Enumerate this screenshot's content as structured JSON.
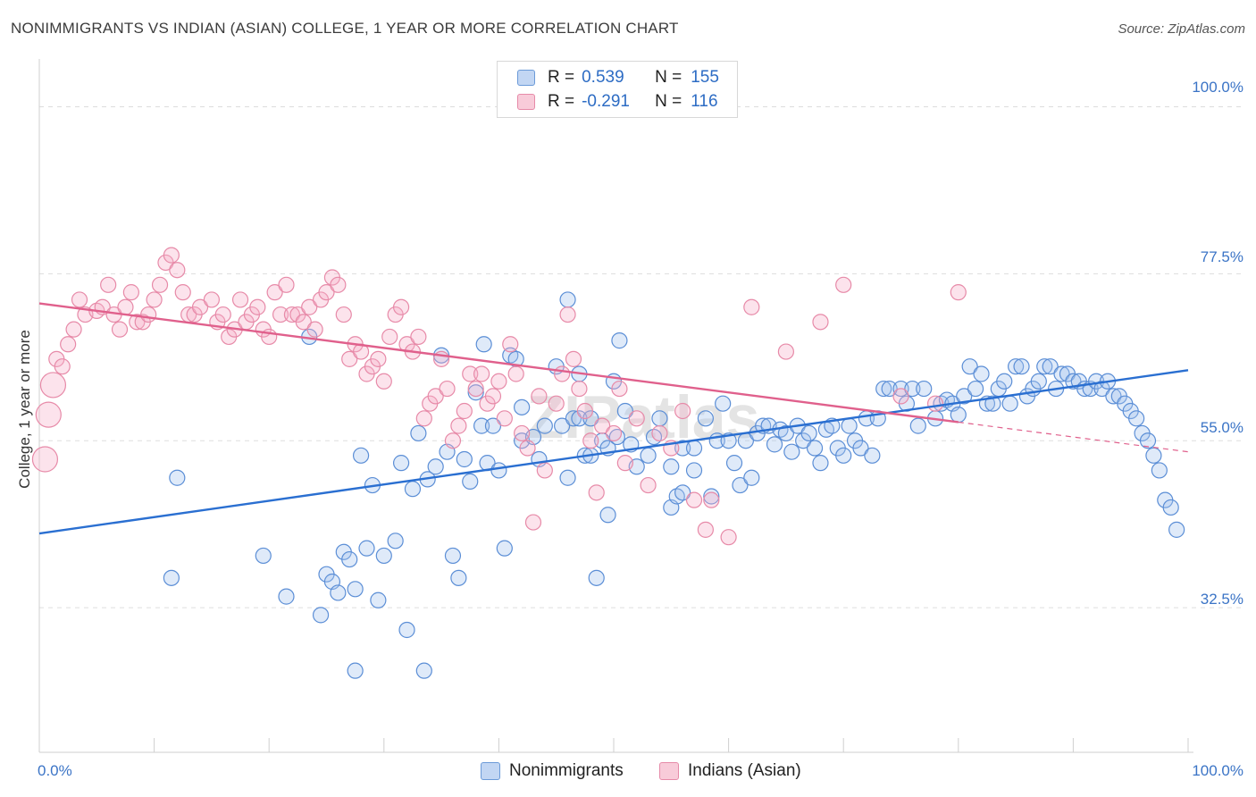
{
  "header": {
    "title": "NONIMMIGRANTS VS INDIAN (ASIAN) COLLEGE, 1 YEAR OR MORE CORRELATION CHART",
    "source": "Source: ZipAtlas.com"
  },
  "watermark": "ZIPatlas",
  "legend": {
    "rows": [
      {
        "r_label": "R =",
        "r_value": "0.539",
        "n_label": "N =",
        "n_value": "155",
        "color": "#a9c8ef"
      },
      {
        "r_label": "R =",
        "r_value": "-0.291",
        "n_label": "N =",
        "n_value": "116",
        "color": "#f5b7cb"
      }
    ]
  },
  "bottom_legend": {
    "items": [
      {
        "label": "Nonimmigrants",
        "color": "#a9c8ef"
      },
      {
        "label": "Indians (Asian)",
        "color": "#f5b7cb"
      }
    ]
  },
  "colors": {
    "blue_fill": "rgba(164,196,238,0.35)",
    "blue_stroke": "#5b8ed6",
    "blue_line": "#2a6fd1",
    "pink_fill": "rgba(245,176,200,0.35)",
    "pink_stroke": "#e78aa8",
    "pink_line": "#e0608c",
    "tick_text": "#3b74c6",
    "grid": "#dddddd"
  },
  "chart_data": {
    "type": "scatter",
    "title": "NONIMMIGRANTS VS INDIAN (ASIAN) COLLEGE, 1 YEAR OR MORE CORRELATION CHART",
    "xlabel": "",
    "ylabel": "College, 1 year or more",
    "xlim": [
      0,
      100
    ],
    "ylim": [
      13,
      105
    ],
    "x_tick_labels": [
      "0.0%",
      "100.0%"
    ],
    "y_ticks": [
      {
        "value": 100,
        "label": "100.0%"
      },
      {
        "value": 77.5,
        "label": "77.5%"
      },
      {
        "value": 55,
        "label": "55.0%"
      },
      {
        "value": 32.5,
        "label": "32.5%"
      }
    ],
    "grid": true,
    "series": [
      {
        "name": "Nonimmigrants",
        "color": "#5b8ed6",
        "trend": {
          "x": [
            0,
            100
          ],
          "y": [
            42.5,
            64.5
          ]
        },
        "points": [
          [
            12,
            50
          ],
          [
            11.5,
            36.5
          ],
          [
            19.5,
            39.5
          ],
          [
            21.5,
            34
          ],
          [
            23.5,
            69
          ],
          [
            25,
            37
          ],
          [
            27.5,
            24
          ],
          [
            24.5,
            31.5
          ],
          [
            25.5,
            36
          ],
          [
            26,
            34.5
          ],
          [
            26.5,
            40
          ],
          [
            27,
            39
          ],
          [
            27.5,
            35
          ],
          [
            28,
            53
          ],
          [
            28.5,
            40.5
          ],
          [
            29,
            49
          ],
          [
            29.5,
            33.5
          ],
          [
            30,
            39.5
          ],
          [
            31,
            41.5
          ],
          [
            32,
            29.5
          ],
          [
            31.5,
            52
          ],
          [
            32.5,
            48.5
          ],
          [
            33,
            56
          ],
          [
            33.5,
            24
          ],
          [
            33.8,
            49.8
          ],
          [
            34.5,
            51.5
          ],
          [
            35,
            66.5
          ],
          [
            35.5,
            53.5
          ],
          [
            36,
            39.5
          ],
          [
            36.5,
            36.5
          ],
          [
            37,
            52.5
          ],
          [
            37.5,
            49.5
          ],
          [
            38,
            61.5
          ],
          [
            38.5,
            57
          ],
          [
            38.7,
            68
          ],
          [
            39,
            52
          ],
          [
            39.5,
            57
          ],
          [
            40,
            51
          ],
          [
            40.5,
            40.5
          ],
          [
            41,
            66.5
          ],
          [
            41.5,
            66
          ],
          [
            42,
            55
          ],
          [
            42,
            59.5
          ],
          [
            43,
            55.5
          ],
          [
            43.5,
            52.5
          ],
          [
            44,
            57
          ],
          [
            45,
            65
          ],
          [
            45.5,
            57
          ],
          [
            46,
            50
          ],
          [
            46.5,
            58
          ],
          [
            47,
            58
          ],
          [
            47.5,
            53
          ],
          [
            48,
            58
          ],
          [
            48.5,
            36.5
          ],
          [
            46,
            74
          ],
          [
            47,
            64
          ],
          [
            48,
            53
          ],
          [
            49,
            55
          ],
          [
            50,
            63
          ],
          [
            50.5,
            68.5
          ],
          [
            49.5,
            45
          ],
          [
            49.5,
            54
          ],
          [
            50.3,
            55.5
          ],
          [
            51,
            59
          ],
          [
            51.5,
            54.5
          ],
          [
            52,
            51.5
          ],
          [
            53,
            53
          ],
          [
            53.5,
            55.5
          ],
          [
            54,
            58
          ],
          [
            55,
            46
          ],
          [
            55,
            51.5
          ],
          [
            55.5,
            47.5
          ],
          [
            56,
            54
          ],
          [
            56,
            48
          ],
          [
            57,
            54
          ],
          [
            57,
            51
          ],
          [
            58,
            58
          ],
          [
            58.5,
            47.5
          ],
          [
            59,
            55
          ],
          [
            59.5,
            60
          ],
          [
            60,
            55
          ],
          [
            60.5,
            52
          ],
          [
            61,
            49
          ],
          [
            61.5,
            55
          ],
          [
            62,
            50
          ],
          [
            62.5,
            56
          ],
          [
            63,
            57
          ],
          [
            63.5,
            57
          ],
          [
            64,
            54.5
          ],
          [
            64.5,
            56.5
          ],
          [
            65,
            56
          ],
          [
            65.5,
            53.5
          ],
          [
            66,
            57
          ],
          [
            66.5,
            55
          ],
          [
            67,
            56
          ],
          [
            67.5,
            54
          ],
          [
            68,
            52
          ],
          [
            68.5,
            56.5
          ],
          [
            69,
            57
          ],
          [
            69.5,
            54
          ],
          [
            70,
            53
          ],
          [
            70.5,
            57
          ],
          [
            71,
            55
          ],
          [
            71.5,
            54
          ],
          [
            72,
            58
          ],
          [
            72.5,
            53
          ],
          [
            73,
            58
          ],
          [
            73.5,
            62
          ],
          [
            74,
            62
          ],
          [
            75,
            62
          ],
          [
            75.5,
            60
          ],
          [
            76,
            62
          ],
          [
            76.5,
            57
          ],
          [
            77,
            62
          ],
          [
            78,
            58
          ],
          [
            78.5,
            60
          ],
          [
            79,
            60.5
          ],
          [
            79.5,
            60
          ],
          [
            80,
            58.5
          ],
          [
            80.5,
            61
          ],
          [
            81,
            65
          ],
          [
            81.5,
            62
          ],
          [
            82,
            64
          ],
          [
            82.5,
            60
          ],
          [
            83,
            60
          ],
          [
            83.5,
            62
          ],
          [
            84,
            63
          ],
          [
            84.5,
            60
          ],
          [
            85,
            65
          ],
          [
            85.5,
            65
          ],
          [
            86,
            61
          ],
          [
            86.5,
            62
          ],
          [
            87,
            63
          ],
          [
            87.5,
            65
          ],
          [
            88,
            65
          ],
          [
            88.5,
            62
          ],
          [
            89,
            64
          ],
          [
            89.5,
            64
          ],
          [
            90,
            63
          ],
          [
            90.5,
            63
          ],
          [
            91,
            62
          ],
          [
            91.5,
            62
          ],
          [
            92,
            63
          ],
          [
            92.5,
            62
          ],
          [
            93,
            63
          ],
          [
            93.5,
            61
          ],
          [
            94,
            61
          ],
          [
            94.5,
            60
          ],
          [
            95,
            59
          ],
          [
            95.5,
            58
          ],
          [
            96,
            56
          ],
          [
            96.5,
            55
          ],
          [
            97,
            53
          ],
          [
            97.5,
            51
          ],
          [
            98,
            47
          ],
          [
            98.5,
            46
          ],
          [
            99,
            43
          ]
        ]
      },
      {
        "name": "Indians (Asian)",
        "color": "#e78aa8",
        "trend": {
          "x": [
            0,
            80
          ],
          "y": [
            73.5,
            57.5
          ]
        },
        "points": [
          [
            0.5,
            52.5
          ],
          [
            0.8,
            58.5
          ],
          [
            1.2,
            62.5
          ],
          [
            1.5,
            66
          ],
          [
            2,
            65
          ],
          [
            2.5,
            68
          ],
          [
            3,
            70
          ],
          [
            3.5,
            74
          ],
          [
            4,
            72
          ],
          [
            5,
            72.5
          ],
          [
            5.5,
            73
          ],
          [
            6,
            76
          ],
          [
            6.5,
            72
          ],
          [
            7,
            70
          ],
          [
            7.5,
            73
          ],
          [
            8,
            75
          ],
          [
            8.5,
            71
          ],
          [
            9,
            71
          ],
          [
            9.5,
            72
          ],
          [
            10,
            74
          ],
          [
            10.5,
            76
          ],
          [
            11,
            79
          ],
          [
            11.5,
            80
          ],
          [
            12,
            78
          ],
          [
            12.5,
            75
          ],
          [
            13,
            72
          ],
          [
            13.5,
            72
          ],
          [
            14,
            73
          ],
          [
            15,
            74
          ],
          [
            15.5,
            71
          ],
          [
            16,
            72
          ],
          [
            16.5,
            69
          ],
          [
            17,
            70
          ],
          [
            17.5,
            74
          ],
          [
            18,
            71
          ],
          [
            18.5,
            72
          ],
          [
            19,
            73
          ],
          [
            19.5,
            70
          ],
          [
            20,
            69
          ],
          [
            20.5,
            75
          ],
          [
            21,
            72
          ],
          [
            21.5,
            76
          ],
          [
            22,
            72
          ],
          [
            22.5,
            72
          ],
          [
            23,
            71
          ],
          [
            23.5,
            73
          ],
          [
            24,
            70
          ],
          [
            24.5,
            74
          ],
          [
            25,
            75
          ],
          [
            25.5,
            77
          ],
          [
            26,
            76
          ],
          [
            26.5,
            72
          ],
          [
            27,
            66
          ],
          [
            27.5,
            68
          ],
          [
            28,
            67
          ],
          [
            28.5,
            64
          ],
          [
            29,
            65
          ],
          [
            29.5,
            66
          ],
          [
            30,
            63
          ],
          [
            30.5,
            69
          ],
          [
            31,
            72
          ],
          [
            31.5,
            73
          ],
          [
            32,
            68
          ],
          [
            32.5,
            67
          ],
          [
            33,
            69
          ],
          [
            33.5,
            58
          ],
          [
            34,
            60
          ],
          [
            34.5,
            61
          ],
          [
            35,
            66
          ],
          [
            35.5,
            62
          ],
          [
            36,
            55
          ],
          [
            36.5,
            57
          ],
          [
            37,
            59
          ],
          [
            37.5,
            64
          ],
          [
            38,
            62
          ],
          [
            38.5,
            64
          ],
          [
            39,
            60
          ],
          [
            39.5,
            61
          ],
          [
            40,
            63
          ],
          [
            40.5,
            58
          ],
          [
            41,
            68
          ],
          [
            41.5,
            64
          ],
          [
            42,
            56
          ],
          [
            42.5,
            54
          ],
          [
            43,
            44
          ],
          [
            43.5,
            61
          ],
          [
            44,
            51
          ],
          [
            45,
            60
          ],
          [
            45.5,
            64
          ],
          [
            46,
            72
          ],
          [
            46.5,
            66
          ],
          [
            47,
            62
          ],
          [
            47.5,
            59
          ],
          [
            48,
            55
          ],
          [
            48.5,
            48
          ],
          [
            49,
            57
          ],
          [
            50,
            56
          ],
          [
            50.5,
            62
          ],
          [
            51,
            52
          ],
          [
            52,
            58
          ],
          [
            53,
            49
          ],
          [
            54,
            56
          ],
          [
            55,
            54
          ],
          [
            56,
            59
          ],
          [
            57,
            47
          ],
          [
            58,
            43
          ],
          [
            58.5,
            47
          ],
          [
            60,
            42
          ],
          [
            62,
            73
          ],
          [
            65,
            67
          ],
          [
            68,
            71
          ],
          [
            70,
            76
          ],
          [
            75,
            61
          ],
          [
            78,
            60
          ],
          [
            80,
            75
          ]
        ]
      }
    ]
  }
}
